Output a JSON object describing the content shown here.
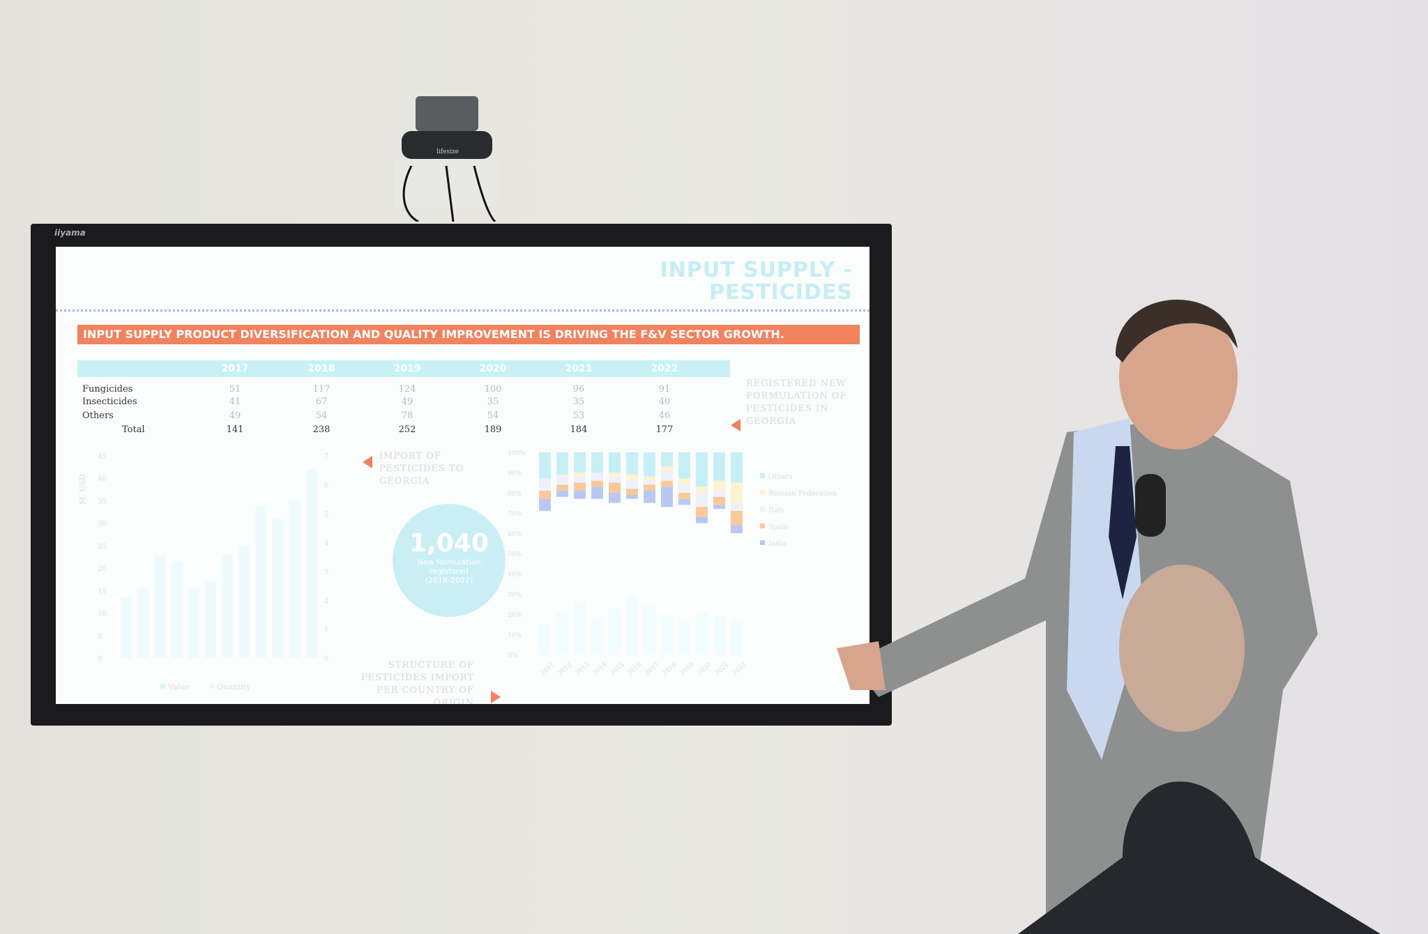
{
  "monitor": {
    "brand": "iiyama"
  },
  "camera": {
    "brand": "lifesize"
  },
  "slide": {
    "title_line1": "INPUT SUPPLY -",
    "title_line2": "PESTICIDES",
    "banner": "INPUT SUPPLY PRODUCT DIVERSIFICATION AND QUALITY IMPROVEMENT IS DRIVING THE F&V SECTOR GROWTH.",
    "table": {
      "years": [
        "2017",
        "2018",
        "2019",
        "2020",
        "2021",
        "2022"
      ],
      "rows": [
        {
          "label": "Fungicides",
          "values": [
            "51",
            "117",
            "124",
            "100",
            "96",
            "91"
          ]
        },
        {
          "label": "Insecticides",
          "values": [
            "41",
            "67",
            "49",
            "35",
            "35",
            "40"
          ]
        },
        {
          "label": "Others",
          "values": [
            "49",
            "54",
            "78",
            "54",
            "53",
            "46"
          ]
        },
        {
          "label": "Total",
          "values": [
            "141",
            "238",
            "252",
            "189",
            "184",
            "177"
          ]
        }
      ]
    },
    "note_registered": "REGISTERED NEW FORMULATION OF PESTICIDES IN GEORGIA",
    "note_import": "IMPORT OF PESTICIDES TO GEORGIA",
    "note_structure": "STRUCTURE OF PESTICIDES IMPORT PER COUNTRY OF ORIGIN",
    "circle": {
      "number": "1,040",
      "line1": "New formulation",
      "line2": "registered",
      "line3": "(2018-2022)"
    },
    "accent_orange": "#f0825e",
    "accent_cyan": "#c8f1f6"
  },
  "chart_data": [
    {
      "type": "bar",
      "ylabel": "M. USD",
      "ylim": [
        0,
        45
      ],
      "yticks": [
        0,
        5,
        10,
        15,
        20,
        25,
        30,
        35,
        40,
        45
      ],
      "y2lim": [
        0,
        7
      ],
      "y2ticks": [
        0,
        1,
        2,
        3,
        4,
        5,
        6,
        7
      ],
      "legend": [
        "Value",
        "Quantity"
      ],
      "legend_placement": "bottom",
      "series": [
        {
          "name": "Value",
          "values": [
            13.5,
            15.5,
            23,
            21.5,
            15.5,
            17,
            23,
            25,
            34,
            31,
            35,
            42
          ]
        }
      ]
    },
    {
      "type": "bar",
      "stacked": true,
      "categories": [
        "2011",
        "2012",
        "2013",
        "2014",
        "2015",
        "2016",
        "2017",
        "2018",
        "2019",
        "2020",
        "2021",
        "2022"
      ],
      "ylim": [
        0,
        100
      ],
      "yticks": [
        "0%",
        "10%",
        "20%",
        "30%",
        "40%",
        "50%",
        "60%",
        "70%",
        "80%",
        "90%",
        "100%"
      ],
      "legend_placement": "right",
      "series": [
        {
          "name": "India",
          "color": "#b9c8f2",
          "values": [
            6,
            3,
            4,
            6,
            5,
            2,
            6,
            10,
            3,
            3,
            2,
            4
          ]
        },
        {
          "name": "Spain",
          "color": "#f9c99a",
          "values": [
            4,
            3,
            4,
            3,
            5,
            3,
            3,
            3,
            3,
            5,
            4,
            7
          ]
        },
        {
          "name": "Italy",
          "color": "#eef0fb",
          "values": [
            6,
            4,
            3,
            4,
            3,
            4,
            2,
            5,
            4,
            7,
            3,
            4
          ]
        },
        {
          "name": "Russian Federation",
          "color": "#fdf3cf",
          "values": [
            0,
            1,
            2,
            0,
            2,
            3,
            2,
            2,
            3,
            3,
            5,
            10
          ]
        },
        {
          "name": "Others",
          "color": "#c6f0f5",
          "values": [
            13,
            11,
            10,
            10,
            10,
            11,
            12,
            7,
            13,
            17,
            14,
            15
          ]
        }
      ],
      "base_values": [
        15,
        21,
        26,
        18,
        23,
        29,
        24,
        19,
        16,
        21,
        19,
        17
      ]
    }
  ]
}
